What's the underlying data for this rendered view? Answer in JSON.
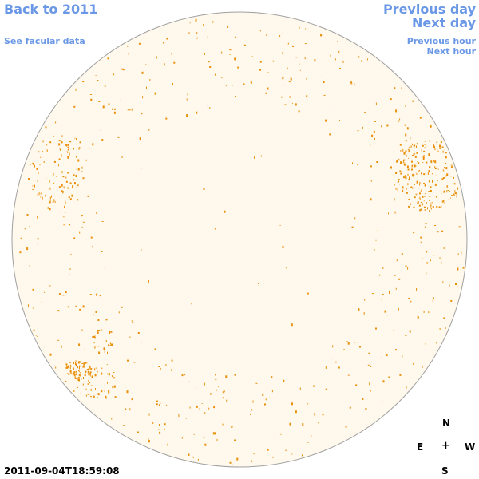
{
  "nav": {
    "back_label": "Back to 2011",
    "facular_label": "See facular data",
    "previous_day_label": "Previous day",
    "next_day_label": "Next day",
    "previous_hour_label": "Previous hour",
    "next_hour_label": "Next hour"
  },
  "compass": {
    "north": "N",
    "east": "E",
    "center": "+",
    "west": "W",
    "south": "S"
  },
  "timestamp": "2011-09-04T18:59:08",
  "colors": {
    "link": "#6a98e6",
    "disk_fill": "#fff8ec",
    "disk_border": "#a0a0a0",
    "feature": "#e8900a"
  }
}
